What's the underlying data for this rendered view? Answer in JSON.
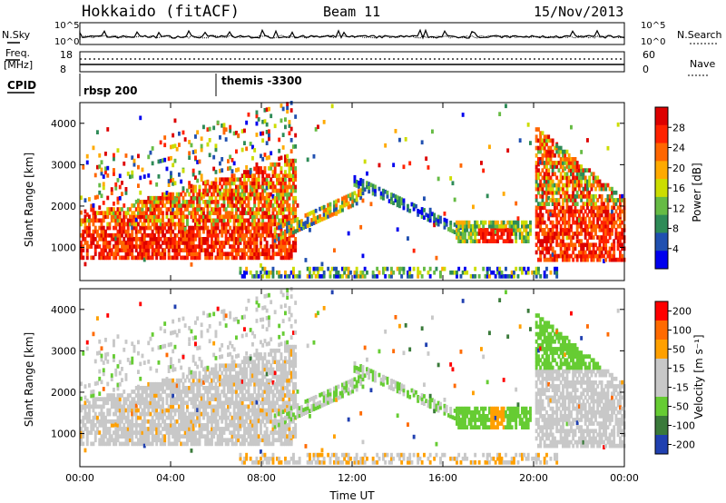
{
  "header": {
    "station": "Hokkaido (fitACF)",
    "beam": "Beam 11",
    "date": "15/Nov/2013"
  },
  "strip_labels": {
    "nsky": "N.Sky",
    "freq_line1": "Freq.",
    "freq_line2": "[MHz]",
    "cpid": "CPID",
    "nsearch": "N.Search",
    "nave": "Nave"
  },
  "cpid_entries": [
    {
      "time": "00:00",
      "label": "rbsp 200"
    },
    {
      "time": "06:00",
      "label": "themis -3300"
    }
  ],
  "colors": {
    "power_scale": [
      "#0000ee",
      "#2050b0",
      "#2e8b57",
      "#66bb44",
      "#ccdd00",
      "#ffaa00",
      "#ff6600",
      "#ff2200",
      "#dd0000"
    ],
    "velocity_scale": [
      "#2040b0",
      "#3a7a3a",
      "#66cc33",
      "#c8c8c8",
      "#c8c8c8",
      "#ffa000",
      "#ff6a00",
      "#ff0000"
    ],
    "ground_scatter": "#b8b8b8"
  },
  "chart_data": [
    {
      "type": "line",
      "name": "noise-panel",
      "left_label": "N.Sky",
      "right_label": "N.Search",
      "left_ticks": [
        "10^5",
        "10^0"
      ],
      "right_ticks": [
        "10^5",
        "10^0"
      ],
      "x_range": [
        "00:00",
        "24:00"
      ]
    },
    {
      "type": "line",
      "name": "freq-nave-panel",
      "left_label": "Freq. [MHz]",
      "right_label": "Nave",
      "left_ticks": [
        "18",
        "8"
      ],
      "right_ticks": [
        "60",
        "0"
      ],
      "x_range": [
        "00:00",
        "24:00"
      ]
    },
    {
      "type": "heatmap",
      "name": "power-panel",
      "ylabel": "Slant Range [km]",
      "yticks": [
        "1000",
        "2000",
        "3000",
        "4000"
      ],
      "ylim": [
        200,
        4500
      ],
      "xticks": [
        "00:00",
        "04:00",
        "08:00",
        "12:00",
        "16:00",
        "20:00",
        "00:00"
      ],
      "xlim_hours": [
        0,
        24
      ],
      "colorbar": {
        "label": "Power [dB]",
        "ticks": [
          "4",
          "8",
          "12",
          "16",
          "20",
          "24",
          "28"
        ],
        "range": [
          0,
          32
        ]
      }
    },
    {
      "type": "heatmap",
      "name": "velocity-panel",
      "ylabel": "Slant Range [km]",
      "yticks": [
        "1000",
        "2000",
        "3000",
        "4000"
      ],
      "ylim": [
        200,
        4500
      ],
      "xticks": [
        "00:00",
        "04:00",
        "08:00",
        "12:00",
        "16:00",
        "20:00",
        "00:00"
      ],
      "xlabel": "Time UT",
      "xlim_hours": [
        0,
        24
      ],
      "colorbar": {
        "label": "Velocity [m s⁻¹]",
        "ticks": [
          "200",
          "100",
          "50",
          "15",
          "-15",
          "-50",
          "-100",
          "-200"
        ]
      }
    }
  ]
}
